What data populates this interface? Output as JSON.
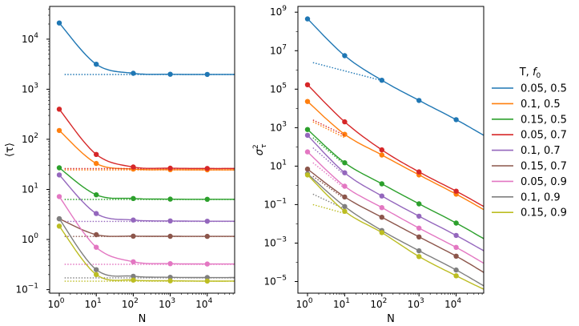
{
  "chart_data": [
    {
      "type": "line",
      "title": "",
      "xlabel": "N",
      "ylabel": "⟨τ⟩",
      "xscale": "log",
      "yscale": "log",
      "xlim": [
        0.55,
        55000
      ],
      "ylim": [
        0.085,
        45000
      ],
      "xticks": [
        {
          "value": 1,
          "base": "10",
          "exp": "0"
        },
        {
          "value": 10,
          "base": "10",
          "exp": "1"
        },
        {
          "value": 100,
          "base": "10",
          "exp": "2"
        },
        {
          "value": 1000,
          "base": "10",
          "exp": "3"
        },
        {
          "value": 10000,
          "base": "10",
          "exp": "4"
        }
      ],
      "yticks": [
        {
          "value": 0.1,
          "base": "10",
          "exp": "−1"
        },
        {
          "value": 1,
          "base": "10",
          "exp": "0"
        },
        {
          "value": 10,
          "base": "10",
          "exp": "1"
        },
        {
          "value": 100,
          "base": "10",
          "exp": "2"
        },
        {
          "value": 1000,
          "base": "10",
          "exp": "3"
        },
        {
          "value": 10000,
          "base": "10",
          "exp": "4"
        }
      ],
      "series": [
        {
          "name": "0.05, 0.5",
          "color": "#1f77b4",
          "points": [
            [
              1,
              21000
            ],
            [
              10,
              3150
            ],
            [
              100,
              2080
            ],
            [
              1000,
              1990
            ],
            [
              10000,
              1975
            ]
          ],
          "asymptote": 1970
        },
        {
          "name": "0.1, 0.5",
          "color": "#ff7f0e",
          "points": [
            [
              1,
              150
            ],
            [
              10,
              33
            ],
            [
              100,
              25.5
            ],
            [
              1000,
              24.8
            ],
            [
              10000,
              24.6
            ]
          ],
          "asymptote": 24.5
        },
        {
          "name": "0.15, 0.5",
          "color": "#2ca02c",
          "points": [
            [
              1,
              27
            ],
            [
              10,
              7.8
            ],
            [
              100,
              6.6
            ],
            [
              1000,
              6.4
            ],
            [
              10000,
              6.35
            ]
          ],
          "asymptote": 6.3
        },
        {
          "name": "0.05, 0.7",
          "color": "#d62728",
          "points": [
            [
              1,
              400
            ],
            [
              10,
              50
            ],
            [
              100,
              28
            ],
            [
              1000,
              26.5
            ],
            [
              10000,
              26.2
            ]
          ],
          "asymptote": 26
        },
        {
          "name": "0.1, 0.7",
          "color": "#9467bd",
          "points": [
            [
              1,
              19.5
            ],
            [
              10,
              3.3
            ],
            [
              100,
              2.45
            ],
            [
              1000,
              2.35
            ],
            [
              10000,
              2.32
            ]
          ],
          "asymptote": 2.3
        },
        {
          "name": "0.15, 0.7",
          "color": "#8c564b",
          "points": [
            [
              1,
              2.6
            ],
            [
              10,
              1.25
            ],
            [
              100,
              1.17
            ],
            [
              1000,
              1.16
            ],
            [
              10000,
              1.155
            ]
          ],
          "asymptote": 1.15
        },
        {
          "name": "0.05, 0.9",
          "color": "#e377c2",
          "points": [
            [
              1,
              7.2
            ],
            [
              10,
              0.7
            ],
            [
              100,
              0.36
            ],
            [
              1000,
              0.33
            ],
            [
              10000,
              0.325
            ]
          ],
          "asymptote": 0.32
        },
        {
          "name": "0.1, 0.9",
          "color": "#7f7f7f",
          "points": [
            [
              1,
              2.6
            ],
            [
              10,
              0.25
            ],
            [
              100,
              0.185
            ],
            [
              1000,
              0.176
            ],
            [
              10000,
              0.174
            ]
          ],
          "asymptote": 0.172
        },
        {
          "name": "0.15, 0.9",
          "color": "#bcbd22",
          "points": [
            [
              1,
              1.85
            ],
            [
              10,
              0.2
            ],
            [
              100,
              0.155
            ],
            [
              1000,
              0.15
            ],
            [
              10000,
              0.148
            ]
          ],
          "asymptote": 0.147
        }
      ]
    },
    {
      "type": "line",
      "title": "",
      "xlabel": "N",
      "ylabel": "σ²τ",
      "xscale": "log",
      "yscale": "log",
      "xlim": [
        0.55,
        55000
      ],
      "ylim": [
        2.5e-06,
        2000000000
      ],
      "xticks": [
        {
          "value": 1,
          "base": "10",
          "exp": "0"
        },
        {
          "value": 10,
          "base": "10",
          "exp": "1"
        },
        {
          "value": 100,
          "base": "10",
          "exp": "2"
        },
        {
          "value": 1000,
          "base": "10",
          "exp": "3"
        },
        {
          "value": 10000,
          "base": "10",
          "exp": "4"
        }
      ],
      "yticks": [
        {
          "value": 1e-05,
          "base": "10",
          "exp": "−5"
        },
        {
          "value": 0.001,
          "base": "10",
          "exp": "−3"
        },
        {
          "value": 0.1,
          "base": "10",
          "exp": "−1"
        },
        {
          "value": 10,
          "base": "10",
          "exp": "1"
        },
        {
          "value": 1000,
          "base": "10",
          "exp": "3"
        },
        {
          "value": 100000,
          "base": "10",
          "exp": "5"
        },
        {
          "value": 10000000,
          "base": "10",
          "exp": "7"
        },
        {
          "value": 1000000000,
          "base": "10",
          "exp": "9"
        }
      ],
      "series": [
        {
          "name": "0.05, 0.5",
          "color": "#1f77b4",
          "points": [
            [
              1,
              450000000
            ],
            [
              10,
              5500000
            ],
            [
              100,
              290000
            ],
            [
              1000,
              26000
            ],
            [
              10000,
              2600
            ]
          ],
          "asymptote": [
            [
              1.4,
              2400000
            ],
            [
              100,
              280000
            ]
          ],
          "end": 400
        },
        {
          "name": "0.1, 0.5",
          "color": "#ff7f0e",
          "points": [
            [
              1,
              23000
            ],
            [
              10,
              450
            ],
            [
              100,
              38
            ],
            [
              1000,
              3.5
            ],
            [
              10000,
              0.35
            ]
          ],
          "asymptote": [
            [
              1.4,
              2000
            ],
            [
              10,
              300
            ]
          ],
          "end": 0.055
        },
        {
          "name": "0.15, 0.5",
          "color": "#2ca02c",
          "points": [
            [
              1,
              800
            ],
            [
              10,
              15
            ],
            [
              100,
              1.2
            ],
            [
              1000,
              0.11
            ],
            [
              10000,
              0.011
            ]
          ],
          "asymptote": [
            [
              1.4,
              300
            ],
            [
              10,
              12
            ]
          ],
          "end": 0.0017
        },
        {
          "name": "0.05, 0.7",
          "color": "#d62728",
          "points": [
            [
              1,
              170000
            ],
            [
              10,
              2000
            ],
            [
              100,
              70
            ],
            [
              1000,
              5
            ],
            [
              10000,
              0.5
            ]
          ],
          "asymptote": [
            [
              1.4,
              2500
            ],
            [
              10,
              400
            ]
          ],
          "end": 0.08
        },
        {
          "name": "0.1, 0.7",
          "color": "#9467bd",
          "points": [
            [
              1,
              400
            ],
            [
              10,
              4.5
            ],
            [
              100,
              0.28
            ],
            [
              1000,
              0.025
            ],
            [
              10000,
              0.0025
            ]
          ],
          "asymptote": [
            [
              1.4,
              90
            ],
            [
              10,
              3.5
            ]
          ],
          "end": 0.0004
        },
        {
          "name": "0.15, 0.7",
          "color": "#8c564b",
          "points": [
            [
              1,
              7
            ],
            [
              10,
              0.25
            ],
            [
              100,
              0.022
            ],
            [
              1000,
              0.0021
            ],
            [
              10000,
              0.00021
            ]
          ],
          "asymptote": [
            [
              1.4,
              3
            ],
            [
              10,
              0.2
            ]
          ],
          "end": 3e-05
        },
        {
          "name": "0.05, 0.9",
          "color": "#e377c2",
          "points": [
            [
              1,
              55
            ],
            [
              10,
              0.9
            ],
            [
              100,
              0.07
            ],
            [
              1000,
              0.006
            ],
            [
              10000,
              0.0006
            ]
          ],
          "asymptote": [
            [
              1.4,
              15
            ],
            [
              10,
              0.7
            ]
          ],
          "end": 9e-05
        },
        {
          "name": "0.1, 0.9",
          "color": "#7f7f7f",
          "points": [
            [
              1,
              4
            ],
            [
              10,
              0.08
            ],
            [
              100,
              0.0045
            ],
            [
              1000,
              0.0004
            ],
            [
              10000,
              4e-05
            ]
          ],
          "asymptote": [
            [
              1.4,
              0.35
            ],
            [
              10,
              0.06
            ]
          ],
          "end": 6e-06
        },
        {
          "name": "0.15, 0.9",
          "color": "#bcbd22",
          "points": [
            [
              1,
              3.5
            ],
            [
              10,
              0.045
            ],
            [
              100,
              0.0035
            ],
            [
              1000,
              0.0002
            ],
            [
              10000,
              2e-05
            ]
          ],
          "asymptote": [
            [
              1.4,
              0.1
            ],
            [
              10,
              0.035
            ]
          ],
          "end": 4e-06
        }
      ]
    }
  ],
  "legend": {
    "title_prefix": "T, ",
    "title_var": "f",
    "title_sub": "0",
    "entries": [
      "0.05, 0.5",
      "0.1, 0.5",
      "0.15, 0.5",
      "0.05, 0.7",
      "0.1, 0.7",
      "0.15, 0.7",
      "0.05, 0.9",
      "0.1, 0.9",
      "0.15, 0.9"
    ],
    "colors": [
      "#1f77b4",
      "#ff7f0e",
      "#2ca02c",
      "#d62728",
      "#9467bd",
      "#8c564b",
      "#e377c2",
      "#7f7f7f",
      "#bcbd22"
    ],
    "position": "right"
  }
}
